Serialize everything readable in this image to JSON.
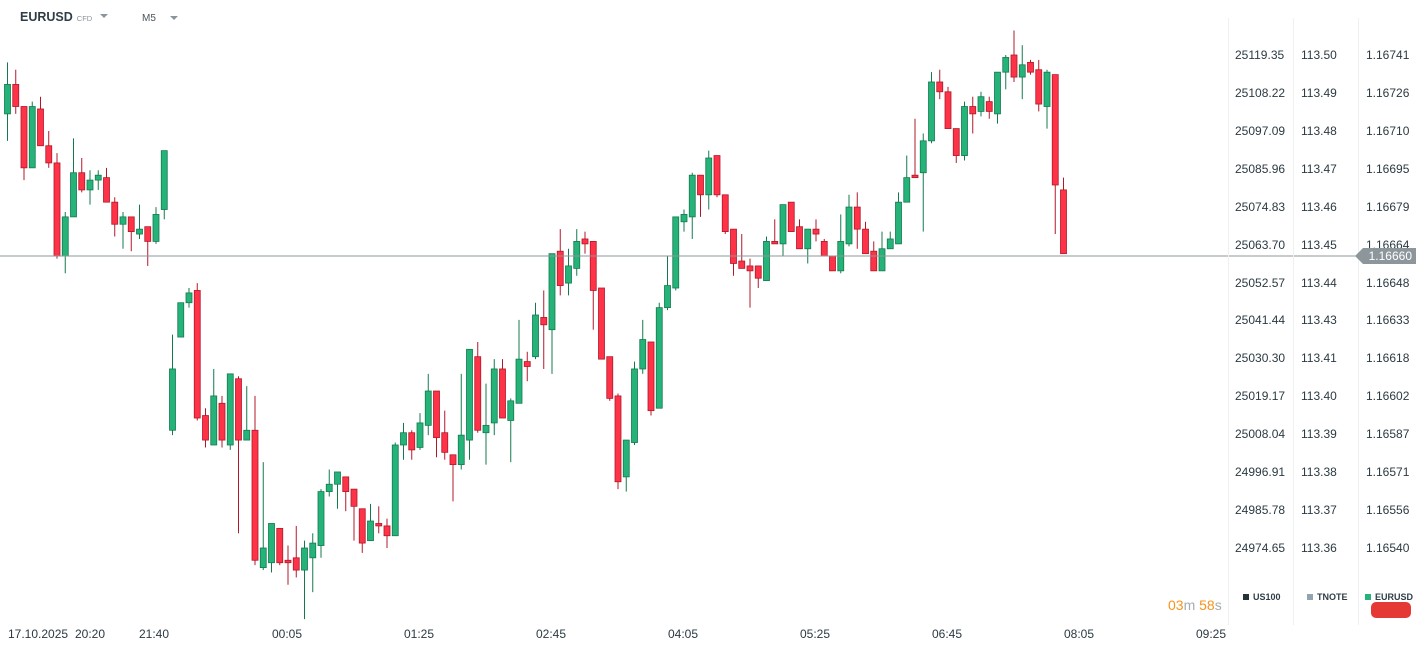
{
  "header": {
    "symbol": "EURUSD",
    "symbol_type": "CFD",
    "timeframe": "M5"
  },
  "axes": {
    "us100": [
      "25119.35",
      "25108.22",
      "25097.09",
      "25085.96",
      "25074.83",
      "25063.70",
      "25052.57",
      "25041.44",
      "25030.30",
      "25019.17",
      "25008.04",
      "24996.91",
      "24985.78",
      "24974.65"
    ],
    "tnote": [
      "113.50",
      "113.49",
      "113.48",
      "113.47",
      "113.46",
      "113.45",
      "113.44",
      "113.43",
      "113.41",
      "113.40",
      "113.39",
      "113.38",
      "113.37",
      "113.36"
    ],
    "eurusd": [
      "1.16741",
      "1.16726",
      "1.16710",
      "1.16695",
      "1.16679",
      "1.16664",
      "1.16648",
      "1.16633",
      "1.16618",
      "1.16602",
      "1.16587",
      "1.16571",
      "1.16556",
      "1.16540"
    ],
    "time_labels": [
      "17.10.2025",
      "20:20",
      "21:40",
      "00:05",
      "01:25",
      "02:45",
      "04:05",
      "05:25",
      "06:45",
      "08:05",
      "09:25"
    ]
  },
  "current_price": "1.16660",
  "countdown": {
    "minutes": "03",
    "m_unit": "m",
    "seconds": "58",
    "s_unit": "s"
  },
  "legend": [
    {
      "label": "US100",
      "color": "#263238"
    },
    {
      "label": "TNOTE",
      "color": "#90a4ae"
    },
    {
      "label": "EURUSD",
      "color": "#26b27a"
    }
  ],
  "colors": {
    "up": "#26b37a",
    "up_border": "#147a4e",
    "down": "#ff3347",
    "down_border": "#b0182a",
    "price_line": "#8d979b"
  },
  "chart_data": {
    "type": "candlestick",
    "symbol": "EURUSD",
    "interval": "M5",
    "ylim": [
      1.1654,
      1.16741
    ],
    "fields": [
      "open",
      "high",
      "low",
      "close"
    ],
    "candles": [
      [
        1.16717,
        1.16738,
        1.16706,
        1.16729
      ],
      [
        1.16729,
        1.16735,
        1.16717,
        1.1672
      ],
      [
        1.1672,
        1.1672,
        1.1669,
        1.16695
      ],
      [
        1.16695,
        1.16722,
        1.16695,
        1.1672
      ],
      [
        1.16719,
        1.16724,
        1.16704,
        1.16704
      ],
      [
        1.16704,
        1.1671,
        1.16695,
        1.16697
      ],
      [
        1.16697,
        1.16701,
        1.16658,
        1.16659
      ],
      [
        1.16659,
        1.16677,
        1.16652,
        1.16675
      ],
      [
        1.16675,
        1.16707,
        1.16675,
        1.16693
      ],
      [
        1.16693,
        1.16699,
        1.16685,
        1.16686
      ],
      [
        1.16686,
        1.16694,
        1.1668,
        1.1669
      ],
      [
        1.1669,
        1.16694,
        1.16686,
        1.16692
      ],
      [
        1.16691,
        1.16695,
        1.16681,
        1.16681
      ],
      [
        1.16681,
        1.16683,
        1.16667,
        1.16672
      ],
      [
        1.16672,
        1.16677,
        1.16662,
        1.16675
      ],
      [
        1.16675,
        1.16675,
        1.16661,
        1.16669
      ],
      [
        1.16668,
        1.1668,
        1.16666,
        1.1667
      ],
      [
        1.16671,
        1.16671,
        1.16655,
        1.16665
      ],
      [
        1.16665,
        1.16679,
        1.16664,
        1.16676
      ],
      [
        1.16678,
        1.16702,
        1.16674,
        1.16702
      ],
      [
        1.16588,
        1.16627,
        1.16586,
        1.16613
      ],
      [
        1.16626,
        1.1664,
        1.16626,
        1.1664
      ],
      [
        1.1664,
        1.16646,
        1.16638,
        1.16644
      ],
      [
        1.16645,
        1.16648,
        1.16592,
        1.16593
      ],
      [
        1.16594,
        1.16597,
        1.16581,
        1.16584
      ],
      [
        1.16582,
        1.16613,
        1.16582,
        1.16602
      ],
      [
        1.16599,
        1.16602,
        1.16581,
        1.16584
      ],
      [
        1.16582,
        1.16611,
        1.1658,
        1.16611
      ],
      [
        1.16609,
        1.1661,
        1.16546,
        1.16584
      ],
      [
        1.16584,
        1.16606,
        1.16584,
        1.16588
      ],
      [
        1.16588,
        1.16602,
        1.16533,
        1.16535
      ],
      [
        1.16532,
        1.16575,
        1.16531,
        1.1654
      ],
      [
        1.16534,
        1.1655,
        1.1653,
        1.1655
      ],
      [
        1.16548,
        1.16548,
        1.16533,
        1.16534
      ],
      [
        1.16535,
        1.16541,
        1.16525,
        1.16534
      ],
      [
        1.16536,
        1.16549,
        1.16528,
        1.16531
      ],
      [
        1.16531,
        1.16543,
        1.16511,
        1.1654
      ],
      [
        1.16536,
        1.16546,
        1.16522,
        1.16542
      ],
      [
        1.16541,
        1.16564,
        1.16536,
        1.16563
      ],
      [
        1.16563,
        1.16572,
        1.16561,
        1.16566
      ],
      [
        1.16566,
        1.16571,
        1.16556,
        1.16571
      ],
      [
        1.16569,
        1.16569,
        1.16555,
        1.16563
      ],
      [
        1.16564,
        1.16564,
        1.16543,
        1.16557
      ],
      [
        1.16556,
        1.16556,
        1.16538,
        1.16542
      ],
      [
        1.16543,
        1.16558,
        1.16543,
        1.16551
      ],
      [
        1.1655,
        1.16557,
        1.16546,
        1.16549
      ],
      [
        1.16549,
        1.16552,
        1.1654,
        1.16545
      ],
      [
        1.16545,
        1.16583,
        1.16545,
        1.16582
      ],
      [
        1.16582,
        1.16591,
        1.16576,
        1.16587
      ],
      [
        1.16587,
        1.16588,
        1.16576,
        1.1658
      ],
      [
        1.16581,
        1.16595,
        1.1658,
        1.16591
      ],
      [
        1.1659,
        1.16611,
        1.16586,
        1.16604
      ],
      [
        1.16604,
        1.16604,
        1.16577,
        1.16585
      ],
      [
        1.16587,
        1.16596,
        1.16576,
        1.16579
      ],
      [
        1.16578,
        1.16578,
        1.16559,
        1.16574
      ],
      [
        1.16574,
        1.16611,
        1.16572,
        1.16586
      ],
      [
        1.16584,
        1.16621,
        1.16576,
        1.16621
      ],
      [
        1.16618,
        1.16624,
        1.16587,
        1.16588
      ],
      [
        1.16587,
        1.16607,
        1.16574,
        1.1659
      ],
      [
        1.16591,
        1.16617,
        1.16586,
        1.16613
      ],
      [
        1.16613,
        1.16617,
        1.16593,
        1.16593
      ],
      [
        1.16592,
        1.16601,
        1.16575,
        1.166
      ],
      [
        1.16599,
        1.16633,
        1.16599,
        1.16617
      ],
      [
        1.16616,
        1.1662,
        1.16608,
        1.16614
      ],
      [
        1.16618,
        1.1664,
        1.16617,
        1.16635
      ],
      [
        1.16634,
        1.16645,
        1.16613,
        1.16631
      ],
      [
        1.16629,
        1.1666,
        1.16611,
        1.1666
      ],
      [
        1.16661,
        1.1667,
        1.16643,
        1.16647
      ],
      [
        1.16648,
        1.16662,
        1.16643,
        1.16655
      ],
      [
        1.16654,
        1.1667,
        1.16651,
        1.16665
      ],
      [
        1.16666,
        1.16669,
        1.1666,
        1.16664
      ],
      [
        1.16665,
        1.16665,
        1.16629,
        1.16645
      ],
      [
        1.16646,
        1.16646,
        1.16617,
        1.16617
      ],
      [
        1.16618,
        1.16618,
        1.166,
        1.16601
      ],
      [
        1.16602,
        1.16603,
        1.16564,
        1.16567
      ],
      [
        1.16569,
        1.16584,
        1.16563,
        1.16584
      ],
      [
        1.16583,
        1.16616,
        1.16582,
        1.16613
      ],
      [
        1.16613,
        1.16633,
        1.16611,
        1.16625
      ],
      [
        1.16624,
        1.16624,
        1.16594,
        1.16596
      ],
      [
        1.16597,
        1.1664,
        1.16597,
        1.16638
      ],
      [
        1.16638,
        1.16659,
        1.16637,
        1.16647
      ],
      [
        1.16646,
        1.16675,
        1.16645,
        1.16675
      ],
      [
        1.16673,
        1.16678,
        1.16669,
        1.16676
      ],
      [
        1.16675,
        1.16693,
        1.16666,
        1.16692
      ],
      [
        1.16692,
        1.16692,
        1.16675,
        1.16684
      ],
      [
        1.16684,
        1.16702,
        1.16678,
        1.16699
      ],
      [
        1.167,
        1.167,
        1.16683,
        1.16684
      ],
      [
        1.16684,
        1.16684,
        1.16668,
        1.16669
      ],
      [
        1.1667,
        1.1667,
        1.16651,
        1.16656
      ],
      [
        1.16657,
        1.16668,
        1.16654,
        1.16654
      ],
      [
        1.16655,
        1.16658,
        1.16638,
        1.16653
      ],
      [
        1.16655,
        1.16655,
        1.16646,
        1.1665
      ],
      [
        1.16649,
        1.16667,
        1.16649,
        1.16665
      ],
      [
        1.16665,
        1.16674,
        1.16664,
        1.16664
      ],
      [
        1.16664,
        1.1668,
        1.16659,
        1.1668
      ],
      [
        1.16681,
        1.16681,
        1.16669,
        1.16669
      ],
      [
        1.16671,
        1.16674,
        1.16662,
        1.16662
      ],
      [
        1.16662,
        1.1667,
        1.16656,
        1.1667
      ],
      [
        1.1667,
        1.16674,
        1.16665,
        1.16668
      ],
      [
        1.16665,
        1.16666,
        1.16659,
        1.16659
      ],
      [
        1.16659,
        1.16659,
        1.16653,
        1.16653
      ],
      [
        1.16653,
        1.16676,
        1.16652,
        1.16665
      ],
      [
        1.16664,
        1.16684,
        1.16663,
        1.16679
      ],
      [
        1.16679,
        1.16685,
        1.16662,
        1.1667
      ],
      [
        1.1667,
        1.16673,
        1.1666,
        1.1666
      ],
      [
        1.16661,
        1.16665,
        1.16653,
        1.16653
      ],
      [
        1.16653,
        1.16669,
        1.16653,
        1.16662
      ],
      [
        1.16662,
        1.16669,
        1.16662,
        1.16666
      ],
      [
        1.16664,
        1.16685,
        1.16664,
        1.16681
      ],
      [
        1.16681,
        1.167,
        1.16681,
        1.16691
      ],
      [
        1.16692,
        1.16715,
        1.16691,
        1.16691
      ],
      [
        1.16693,
        1.16709,
        1.16669,
        1.16706
      ],
      [
        1.16706,
        1.16734,
        1.16705,
        1.1673
      ],
      [
        1.1673,
        1.16735,
        1.16723,
        1.16726
      ],
      [
        1.16726,
        1.16728,
        1.16711,
        1.16711
      ],
      [
        1.16711,
        1.16711,
        1.16697,
        1.167
      ],
      [
        1.167,
        1.16722,
        1.16698,
        1.1672
      ],
      [
        1.1672,
        1.16724,
        1.16709,
        1.16717
      ],
      [
        1.16718,
        1.16726,
        1.16716,
        1.16724
      ],
      [
        1.16722,
        1.16724,
        1.16715,
        1.16718
      ],
      [
        1.16717,
        1.16734,
        1.16713,
        1.16734
      ],
      [
        1.16734,
        1.16741,
        1.16727,
        1.1674
      ],
      [
        1.16741,
        1.16751,
        1.1673,
        1.16732
      ],
      [
        1.16732,
        1.16745,
        1.16723,
        1.16737
      ],
      [
        1.16738,
        1.16739,
        1.16733,
        1.16734
      ],
      [
        1.16735,
        1.16739,
        1.16718,
        1.16721
      ],
      [
        1.1672,
        1.16735,
        1.16711,
        1.16734
      ],
      [
        1.16733,
        1.16733,
        1.16668,
        1.16688
      ],
      [
        1.16686,
        1.16691,
        1.1666,
        1.1666
      ]
    ]
  }
}
